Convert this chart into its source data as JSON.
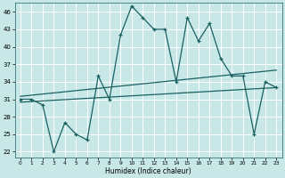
{
  "xlabel": "Humidex (Indice chaleur)",
  "bg_color": "#c8e8e8",
  "line_color": "#1a6060",
  "grid_color": "#ffffff",
  "xlim": [
    -0.5,
    23.5
  ],
  "ylim": [
    21.0,
    47.5
  ],
  "yticks": [
    22,
    25,
    28,
    31,
    34,
    37,
    40,
    43,
    46
  ],
  "xticks": [
    0,
    1,
    2,
    3,
    4,
    5,
    6,
    7,
    8,
    9,
    10,
    11,
    12,
    13,
    14,
    15,
    16,
    17,
    18,
    19,
    20,
    21,
    22,
    23
  ],
  "main_data": [
    31,
    31,
    30,
    22,
    27,
    25,
    24,
    35,
    31,
    42,
    47,
    45,
    43,
    43,
    34,
    45,
    41,
    44,
    38,
    35,
    35,
    25,
    34,
    33
  ],
  "upper_trend_x": [
    0,
    23
  ],
  "upper_trend_y": [
    31.5,
    36.0
  ],
  "lower_trend_x": [
    0,
    23
  ],
  "lower_trend_y": [
    30.5,
    33.0
  ],
  "line_width": 0.9,
  "marker_size": 3.0
}
